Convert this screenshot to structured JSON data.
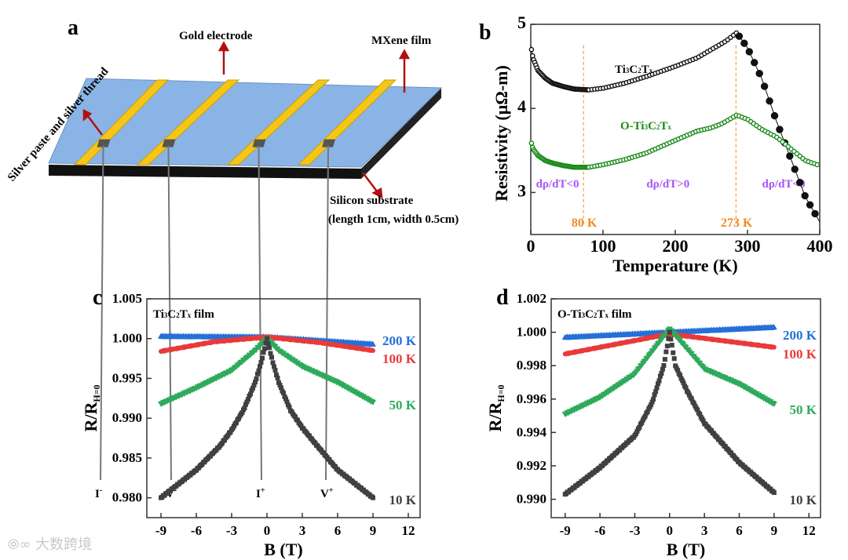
{
  "panel_a": {
    "label": "a",
    "gold_electrode": "Gold electrode",
    "mxene_film": "MXene film",
    "silver": "Silver paste and silver thread",
    "substrate": "Silicon substrate",
    "substrate_dims": "(length 1cm, width 0.5cm)",
    "probes": [
      {
        "base": "I",
        "sup": "-"
      },
      {
        "base": "V",
        "sup": "-"
      },
      {
        "base": "I",
        "sup": "+"
      },
      {
        "base": "V",
        "sup": "+"
      }
    ],
    "colors": {
      "film": "#8ab4e6",
      "gold": "#f5c518",
      "substrate": "#111111",
      "arrow": "#b01010",
      "pad": "#555555"
    }
  },
  "chart_data": [
    {
      "panel": "b",
      "type": "scatter",
      "xlabel": "Temperature (K)",
      "ylabel": "Resistivity (μΩ-m)",
      "xlim": [
        0,
        400
      ],
      "ylim": [
        2.5,
        5
      ],
      "xticks": [
        "0",
        "100",
        "200",
        "300",
        "400"
      ],
      "xtick_values": [
        0,
        100,
        200,
        300,
        400
      ],
      "yticks": [
        "3",
        "4",
        "5"
      ],
      "ytick_values": [
        3,
        4,
        5
      ],
      "series": [
        {
          "name": "Ti3C2Tx",
          "color": "#111111",
          "x": [
            0,
            3,
            10,
            20,
            30,
            45,
            60,
            80,
            100,
            130,
            160,
            200,
            230,
            250,
            270,
            285,
            300,
            320,
            340,
            360,
            380,
            400
          ],
          "y": [
            4.75,
            4.6,
            4.45,
            4.36,
            4.3,
            4.26,
            4.23,
            4.22,
            4.24,
            4.3,
            4.38,
            4.5,
            4.6,
            4.7,
            4.8,
            4.9,
            4.72,
            4.35,
            3.85,
            3.4,
            2.95,
            2.65
          ]
        },
        {
          "name": "O-Ti3C2Tx",
          "color": "#1a8a1a",
          "x": [
            0,
            3,
            10,
            20,
            30,
            45,
            60,
            80,
            100,
            130,
            160,
            200,
            230,
            250,
            265,
            285,
            300,
            320,
            340,
            360,
            380,
            400
          ],
          "y": [
            3.62,
            3.52,
            3.44,
            3.38,
            3.35,
            3.32,
            3.3,
            3.3,
            3.33,
            3.39,
            3.47,
            3.62,
            3.73,
            3.77,
            3.82,
            3.92,
            3.87,
            3.75,
            3.66,
            3.52,
            3.38,
            3.32
          ]
        }
      ],
      "series_labels": [
        {
          "base": "Ti",
          "s1": "3",
          "mid": "C",
          "s2": "2",
          "end": "T",
          "s3": "x"
        },
        {
          "base": "O-Ti",
          "s1": "3",
          "mid": "C",
          "s2": "2",
          "end": "T",
          "s3": "x"
        }
      ],
      "annotations": {
        "regions": [
          "dρ/dT<0",
          "dρ/dT>0",
          "dρ/dT<0"
        ],
        "region_color": "#a855f7",
        "markers": [
          "80 K",
          "273 K"
        ],
        "marker_T": [
          73,
          284
        ],
        "marker_color": "#f08a24"
      }
    },
    {
      "panel": "c",
      "type": "scatter",
      "title": "Ti3C2Tx film",
      "xlabel": "B (T)",
      "ylabel": "R/R",
      "ylabel_sub": "H=0",
      "xlim": [
        -10.2,
        13
      ],
      "ylim": [
        0.9775,
        1.005
      ],
      "xticks": [
        "-9",
        "-6",
        "-3",
        "0",
        "3",
        "6",
        "9",
        "12"
      ],
      "xtick_values": [
        -9,
        -6,
        -3,
        0,
        3,
        6,
        9,
        12
      ],
      "yticks": [
        "0.980",
        "0.985",
        "0.990",
        "0.995",
        "1.000",
        "1.005"
      ],
      "ytick_values": [
        0.98,
        0.985,
        0.99,
        0.995,
        1.0,
        1.005
      ],
      "series": [
        {
          "name": "10 K",
          "color": "#404040",
          "marker": "square",
          "x": [
            -9,
            -6,
            -4,
            -3,
            -2,
            -1,
            -0.5,
            0,
            0.5,
            1,
            2,
            3,
            4,
            6,
            9
          ],
          "y": [
            0.98,
            0.9835,
            0.9865,
            0.9885,
            0.991,
            0.9945,
            0.997,
            1.0,
            0.997,
            0.9945,
            0.991,
            0.9888,
            0.987,
            0.9835,
            0.98
          ]
        },
        {
          "name": "50 K",
          "color": "#2eaa5c",
          "marker": "tri-down",
          "x": [
            -9,
            -6,
            -3,
            -1,
            0,
            1,
            3,
            6,
            9
          ],
          "y": [
            0.9918,
            0.9938,
            0.996,
            0.9985,
            1.0,
            0.9985,
            0.9965,
            0.9945,
            0.992
          ]
        },
        {
          "name": "100 K",
          "color": "#e83a3a",
          "marker": "circle",
          "x": [
            -9,
            -4.5,
            0,
            4.5,
            9
          ],
          "y": [
            0.9984,
            0.9996,
            1.0002,
            0.9995,
            0.9985
          ]
        },
        {
          "name": "200 K",
          "color": "#2470d8",
          "marker": "tri-up",
          "x": [
            -9,
            0,
            9
          ],
          "y": [
            1.0003,
            1.0002,
            0.9993
          ]
        }
      ]
    },
    {
      "panel": "d",
      "type": "scatter",
      "title": "O-Ti3C2Tx film",
      "xlabel": "B (T)",
      "ylabel": "R/R",
      "ylabel_sub": "H=0",
      "xlim": [
        -10.2,
        13
      ],
      "ylim": [
        0.9889,
        1.002
      ],
      "xticks": [
        "-9",
        "-6",
        "-3",
        "0",
        "3",
        "6",
        "9",
        "12"
      ],
      "xtick_values": [
        -9,
        -6,
        -3,
        0,
        3,
        6,
        9,
        12
      ],
      "yticks": [
        "0.990",
        "0.992",
        "0.994",
        "0.996",
        "0.998",
        "1.000",
        "1.002"
      ],
      "ytick_values": [
        0.99,
        0.992,
        0.994,
        0.996,
        0.998,
        1.0,
        1.002
      ],
      "series": [
        {
          "name": "10 K",
          "color": "#404040",
          "marker": "square",
          "x": [
            -9,
            -6,
            -3,
            -1.5,
            -0.5,
            0,
            0.5,
            1.5,
            3,
            6,
            9
          ],
          "y": [
            0.9903,
            0.9919,
            0.9938,
            0.9958,
            0.998,
            1.0,
            0.998,
            0.9965,
            0.99455,
            0.9922,
            0.9904
          ]
        },
        {
          "name": "50 K",
          "color": "#2eaa5c",
          "marker": "tri-down",
          "x": [
            -9,
            -6,
            -3,
            0,
            3,
            6,
            9
          ],
          "y": [
            0.9951,
            0.9961,
            0.9975,
            1.0002,
            0.9978,
            0.9969,
            0.9957
          ]
        },
        {
          "name": "100 K",
          "color": "#e83a3a",
          "marker": "circle",
          "x": [
            -9,
            0,
            9
          ],
          "y": [
            0.9987,
            0.9999,
            0.9991
          ]
        },
        {
          "name": "200 K",
          "color": "#2470d8",
          "marker": "tri-up",
          "x": [
            -9,
            0,
            9
          ],
          "y": [
            0.9997,
            1.0,
            1.0003
          ]
        }
      ]
    }
  ],
  "panel_labels": [
    "b",
    "c",
    "d"
  ],
  "watermark": "⦾∞ 大数跨境"
}
